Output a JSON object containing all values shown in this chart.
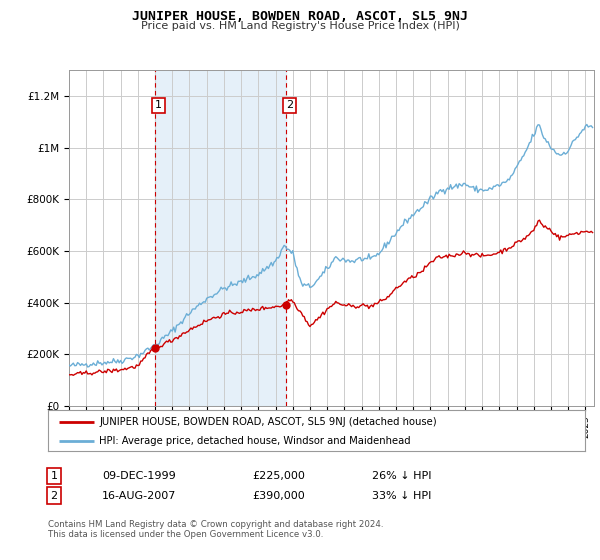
{
  "title": "JUNIPER HOUSE, BOWDEN ROAD, ASCOT, SL5 9NJ",
  "subtitle": "Price paid vs. HM Land Registry's House Price Index (HPI)",
  "background_color": "#ffffff",
  "plot_bg_color": "#ffffff",
  "grid_color": "#cccccc",
  "hpi_color": "#6baed6",
  "price_color": "#cc0000",
  "shade_color": "#daeaf7",
  "sale1_date_num": 2000.0,
  "sale1_price": 225000,
  "sale2_date_num": 2007.62,
  "sale2_price": 390000,
  "xmin": 1995,
  "xmax": 2025.5,
  "ymin": 0,
  "ymax": 1300000,
  "legend_text1": "JUNIPER HOUSE, BOWDEN ROAD, ASCOT, SL5 9NJ (detached house)",
  "legend_text2": "HPI: Average price, detached house, Windsor and Maidenhead",
  "annotation1_label": "1",
  "annotation1_date": "09-DEC-1999",
  "annotation1_price": "£225,000",
  "annotation1_hpi": "26% ↓ HPI",
  "annotation2_label": "2",
  "annotation2_date": "16-AUG-2007",
  "annotation2_price": "£390,000",
  "annotation2_hpi": "33% ↓ HPI",
  "footnote": "Contains HM Land Registry data © Crown copyright and database right 2024.\nThis data is licensed under the Open Government Licence v3.0.",
  "yticks": [
    0,
    200000,
    400000,
    600000,
    800000,
    1000000,
    1200000
  ],
  "ytick_labels": [
    "£0",
    "£200K",
    "£400K",
    "£600K",
    "£800K",
    "£1M",
    "£1.2M"
  ]
}
